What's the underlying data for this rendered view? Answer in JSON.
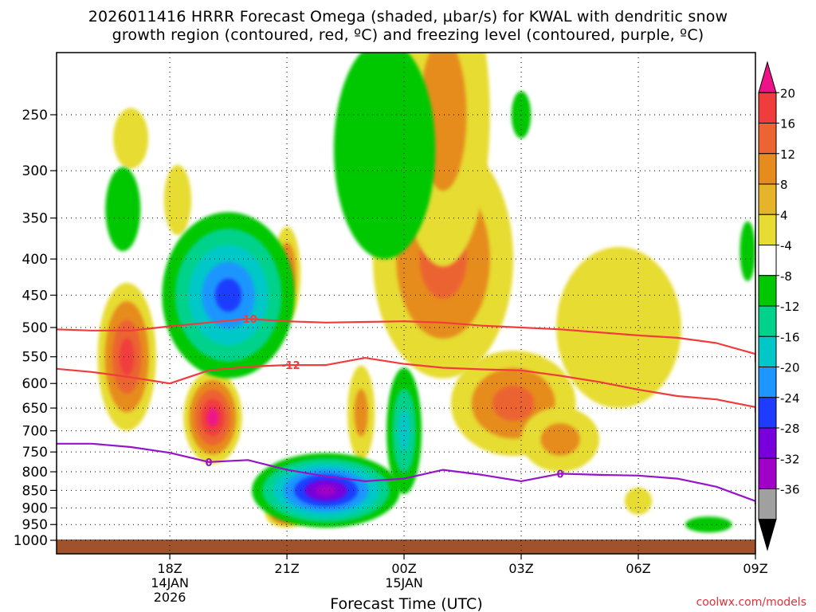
{
  "title_line1": "2026011416 HRRR Forecast Omega (shaded, µbar/s) for KWAL with dendritic snow",
  "title_line2": "growth region (contoured, red, ºC) and freezing level (contoured, purple, ºC)",
  "credit": "coolwx.com/models",
  "chart_data": {
    "type": "time-height cross section",
    "title": "2026011416 HRRR Forecast Omega (shaded, µbar/s) for KWAL with dendritic snow growth region (contoured, red, ºC) and freezing level (contoured, purple, ºC)",
    "xlabel": "Forecast Time (UTC)",
    "ylabel": "",
    "x_range_hours_utc": [
      15.1,
      33.0
    ],
    "x_ticks": [
      {
        "hour": 18,
        "label": "18Z",
        "sub1": "14JAN",
        "sub2": "2026"
      },
      {
        "hour": 21,
        "label": "21Z",
        "sub1": "",
        "sub2": ""
      },
      {
        "hour": 24,
        "label": "00Z",
        "sub1": "15JAN",
        "sub2": ""
      },
      {
        "hour": 27,
        "label": "03Z",
        "sub1": "",
        "sub2": ""
      },
      {
        "hour": 30,
        "label": "06Z",
        "sub1": "",
        "sub2": ""
      },
      {
        "hour": 33,
        "label": "09Z",
        "sub1": "",
        "sub2": ""
      }
    ],
    "y_ticks_hpa": [
      250,
      300,
      350,
      400,
      450,
      500,
      550,
      600,
      650,
      700,
      750,
      800,
      850,
      900,
      950,
      1000
    ],
    "y_scale": "log pressure (inverted)",
    "grid": true,
    "colorbar": {
      "label_values": [
        "20",
        "16",
        "12",
        "8",
        "4",
        "-4",
        "-8",
        "-12",
        "-16",
        "-20",
        "-24",
        "-28",
        "-32",
        "-36"
      ],
      "colors": [
        "#ee1289",
        "#f03c3c",
        "#ec6432",
        "#e68c1e",
        "#e6b428",
        "#e6dc32",
        "#ffffff",
        "#00c800",
        "#00d28c",
        "#00c8c8",
        "#1e96ff",
        "#1e3cff",
        "#7800dc",
        "#a000c8",
        "#a0a0a0",
        "#000000"
      ]
    },
    "contours": {
      "dgz_minus10C": {
        "label": "-10",
        "color": "#f03c3c",
        "points": [
          [
            15.1,
            503
          ],
          [
            16.0,
            505
          ],
          [
            17.0,
            505
          ],
          [
            18.0,
            498
          ],
          [
            19.0,
            492
          ],
          [
            20.0,
            486
          ],
          [
            21.0,
            490
          ],
          [
            22.0,
            492
          ],
          [
            23.0,
            491
          ],
          [
            24.0,
            490
          ],
          [
            25.0,
            492
          ],
          [
            26.0,
            497
          ],
          [
            27.0,
            500
          ],
          [
            28.0,
            503
          ],
          [
            29.0,
            508
          ],
          [
            30.0,
            513
          ],
          [
            31.0,
            517
          ],
          [
            32.0,
            526
          ],
          [
            33.0,
            545
          ],
          [
            33.0,
            560
          ]
        ]
      },
      "dgz_minus12C": {
        "label": "-12",
        "color": "#f03c3c",
        "points": [
          [
            15.1,
            572
          ],
          [
            16.0,
            578
          ],
          [
            17.0,
            588
          ],
          [
            18.0,
            600
          ],
          [
            19.0,
            575
          ],
          [
            20.0,
            568
          ],
          [
            21.0,
            565
          ],
          [
            22.0,
            565
          ],
          [
            23.0,
            552
          ],
          [
            24.0,
            563
          ],
          [
            25.0,
            570
          ],
          [
            26.0,
            573
          ],
          [
            27.0,
            575
          ],
          [
            28.0,
            585
          ],
          [
            29.0,
            597
          ],
          [
            30.0,
            612
          ],
          [
            31.0,
            625
          ],
          [
            32.0,
            632
          ],
          [
            33.0,
            648
          ],
          [
            33.0,
            660
          ]
        ]
      },
      "freezing_level_0C": {
        "label": "0",
        "color": "#9614c8",
        "points": [
          [
            15.1,
            730
          ],
          [
            16.0,
            730
          ],
          [
            17.0,
            738
          ],
          [
            18.0,
            752
          ],
          [
            19.0,
            775
          ],
          [
            20.0,
            770
          ],
          [
            21.0,
            795
          ],
          [
            22.0,
            812
          ],
          [
            23.0,
            825
          ],
          [
            24.0,
            818
          ],
          [
            25.0,
            795
          ],
          [
            26.0,
            808
          ],
          [
            27.0,
            825
          ],
          [
            28.0,
            805
          ],
          [
            29.0,
            808
          ],
          [
            30.0,
            810
          ],
          [
            31.0,
            818
          ],
          [
            32.0,
            840
          ],
          [
            33.0,
            880
          ],
          [
            33.0,
            890
          ]
        ]
      }
    },
    "omega_features": [
      {
        "center": [
          17.0,
          270
        ],
        "kind": "positive",
        "peak": 6
      },
      {
        "center": [
          18.2,
          330
        ],
        "kind": "positive",
        "peak": 6
      },
      {
        "center": [
          16.9,
          550
        ],
        "kind": "positive",
        "peak": 18
      },
      {
        "center": [
          19.1,
          670
        ],
        "kind": "positive",
        "peak": 22
      },
      {
        "center": [
          21.0,
          920
        ],
        "kind": "positive",
        "peak": 18
      },
      {
        "center": [
          21.0,
          420
        ],
        "kind": "positive",
        "peak": 12
      },
      {
        "center": [
          22.9,
          660
        ],
        "kind": "positive",
        "peak": 10
      },
      {
        "center": [
          25.0,
          400
        ],
        "kind": "positive",
        "peak": 12
      },
      {
        "center": [
          25.0,
          250
        ],
        "kind": "positive",
        "peak": 10
      },
      {
        "center": [
          26.8,
          640
        ],
        "kind": "positive",
        "peak": 14
      },
      {
        "center": [
          28.0,
          720
        ],
        "kind": "positive",
        "peak": 8
      },
      {
        "center": [
          30.0,
          880
        ],
        "kind": "positive",
        "peak": 6
      },
      {
        "center": [
          29.5,
          500
        ],
        "kind": "positive",
        "peak": 6
      },
      {
        "center": [
          16.8,
          340
        ],
        "kind": "negative",
        "peak": -7
      },
      {
        "center": [
          19.5,
          450
        ],
        "kind": "negative",
        "peak": -20
      },
      {
        "center": [
          22.0,
          850
        ],
        "kind": "negative",
        "peak": -28
      },
      {
        "center": [
          23.5,
          280
        ],
        "kind": "negative",
        "peak": -7
      },
      {
        "center": [
          24.0,
          700
        ],
        "kind": "negative",
        "peak": -15
      },
      {
        "center": [
          27.0,
          250
        ],
        "kind": "negative",
        "peak": -6
      },
      {
        "center": [
          32.8,
          390
        ],
        "kind": "negative",
        "peak": -6
      },
      {
        "center": [
          31.8,
          950
        ],
        "kind": "negative",
        "peak": -6
      }
    ]
  }
}
